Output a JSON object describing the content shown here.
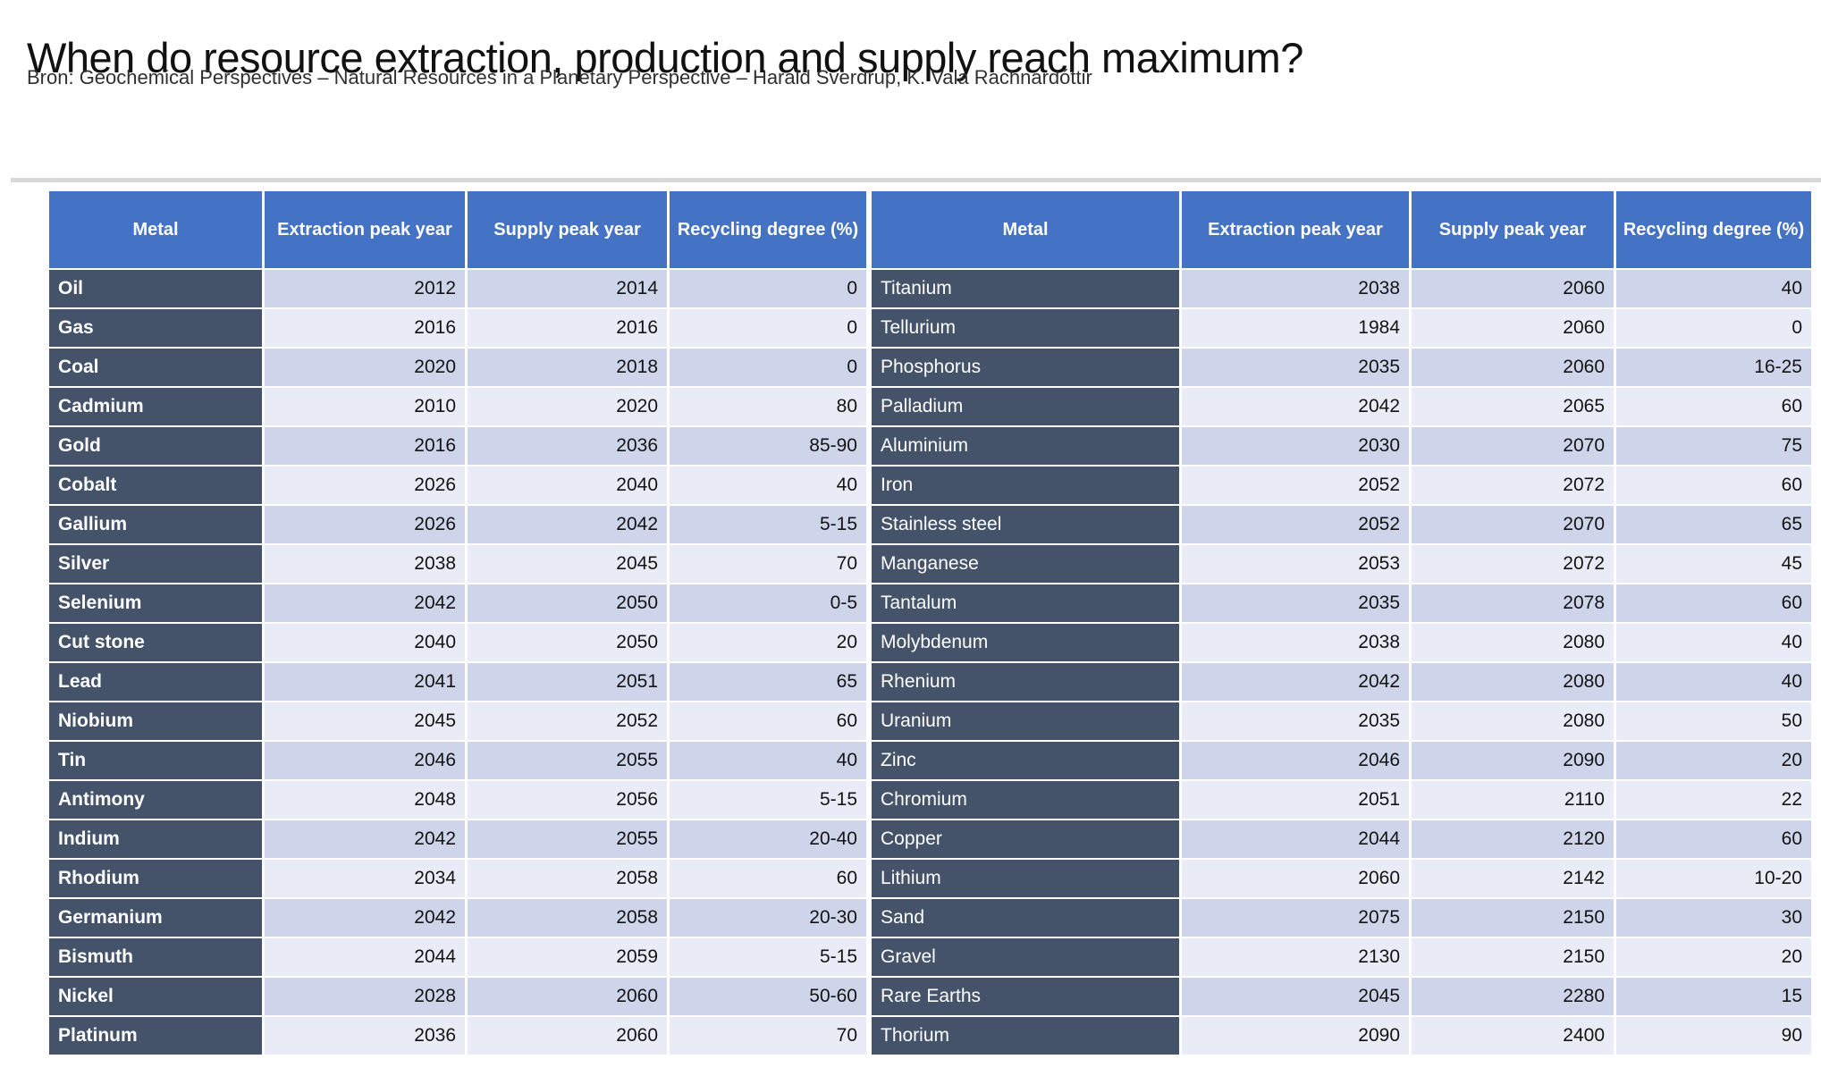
{
  "title": "When do resource extraction, production and supply reach maximum?",
  "subtitle": "Bron: Geochemical Perspectives – Natural Resources in a Planetary Perspective – Harald Sverdrup, K. Vala Rachnardóttir",
  "colors": {
    "page_bg": "#ffffff",
    "title_color": "#111111",
    "subtitle_color": "#303030",
    "divider_color": "#d9d9d9",
    "header_bg": "#4472c4",
    "header_text": "#ffffff",
    "metal_bg": "#44526a",
    "metal_text": "#ffffff",
    "band_dark": "#ced5ea",
    "band_light": "#e9ecf6",
    "value_text": "#141414"
  },
  "tables": [
    {
      "id": "left",
      "columns": [
        "Metal",
        "Extraction peak year",
        "Supply peak year",
        "Recycling degree (%)"
      ],
      "rows": [
        [
          "Oil",
          "2012",
          "2014",
          "0"
        ],
        [
          "Gas",
          "2016",
          "2016",
          "0"
        ],
        [
          "Coal",
          "2020",
          "2018",
          "0"
        ],
        [
          "Cadmium",
          "2010",
          "2020",
          "80"
        ],
        [
          "Gold",
          "2016",
          "2036",
          "85-90"
        ],
        [
          "Cobalt",
          "2026",
          "2040",
          "40"
        ],
        [
          "Gallium",
          "2026",
          "2042",
          "5-15"
        ],
        [
          "Silver",
          "2038",
          "2045",
          "70"
        ],
        [
          "Selenium",
          "2042",
          "2050",
          "0-5"
        ],
        [
          "Cut stone",
          "2040",
          "2050",
          "20"
        ],
        [
          "Lead",
          "2041",
          "2051",
          "65"
        ],
        [
          "Niobium",
          "2045",
          "2052",
          "60"
        ],
        [
          "Tin",
          "2046",
          "2055",
          "40"
        ],
        [
          "Antimony",
          "2048",
          "2056",
          "5-15"
        ],
        [
          "Indium",
          "2042",
          "2055",
          "20-40"
        ],
        [
          "Rhodium",
          "2034",
          "2058",
          "60"
        ],
        [
          "Germanium",
          "2042",
          "2058",
          "20-30"
        ],
        [
          "Bismuth",
          "2044",
          "2059",
          "5-15"
        ],
        [
          "Nickel",
          "2028",
          "2060",
          "50-60"
        ],
        [
          "Platinum",
          "2036",
          "2060",
          "70"
        ]
      ]
    },
    {
      "id": "right",
      "columns": [
        "Metal",
        "Extraction peak year",
        "Supply peak year",
        "Recycling degree (%)"
      ],
      "rows": [
        [
          "Titanium",
          "2038",
          "2060",
          "40"
        ],
        [
          "Tellurium",
          "1984",
          "2060",
          "0"
        ],
        [
          "Phosphorus",
          "2035",
          "2060",
          "16-25"
        ],
        [
          "Palladium",
          "2042",
          "2065",
          "60"
        ],
        [
          "Aluminium",
          "2030",
          "2070",
          "75"
        ],
        [
          "Iron",
          "2052",
          "2072",
          "60"
        ],
        [
          "Stainless steel",
          "2052",
          "2070",
          "65"
        ],
        [
          "Manganese",
          "2053",
          "2072",
          "45"
        ],
        [
          "Tantalum",
          "2035",
          "2078",
          "60"
        ],
        [
          "Molybdenum",
          "2038",
          "2080",
          "40"
        ],
        [
          "Rhenium",
          "2042",
          "2080",
          "40"
        ],
        [
          "Uranium",
          "2035",
          "2080",
          "50"
        ],
        [
          "Zinc",
          "2046",
          "2090",
          "20"
        ],
        [
          "Chromium",
          "2051",
          "2110",
          "22"
        ],
        [
          "Copper",
          "2044",
          "2120",
          "60"
        ],
        [
          "Lithium",
          "2060",
          "2142",
          "10-20"
        ],
        [
          "Sand",
          "2075",
          "2150",
          "30"
        ],
        [
          "Gravel",
          "2130",
          "2150",
          "20"
        ],
        [
          "Rare Earths",
          "2045",
          "2280",
          "15"
        ],
        [
          "Thorium",
          "2090",
          "2400",
          "90"
        ]
      ]
    }
  ]
}
